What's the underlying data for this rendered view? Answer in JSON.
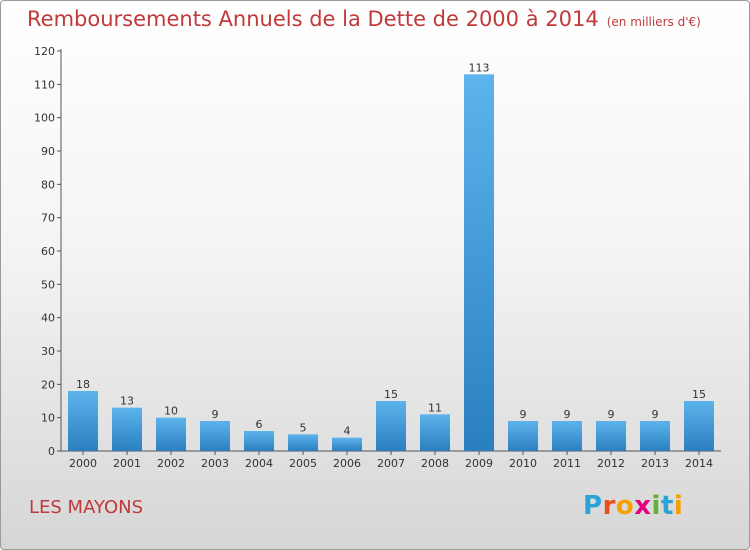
{
  "title": "Remboursements Annuels de la Dette de 2000 à 2014",
  "title_unit": "(en milliers d'€)",
  "place": "LES MAYONS",
  "logo": {
    "letters": [
      "P",
      "r",
      "o",
      "x",
      "i",
      "t",
      "i"
    ],
    "colors": [
      "#2aa3d6",
      "#e94e1b",
      "#f4a100",
      "#e6007e",
      "#5fb336",
      "#2aa3d6",
      "#f4a100"
    ]
  },
  "colors": {
    "title": "#c0393b",
    "bar_light": "#5db4ec",
    "bar_dark": "#2a7fc0"
  },
  "chart_data": {
    "type": "bar",
    "categories": [
      "2000",
      "2001",
      "2002",
      "2003",
      "2004",
      "2005",
      "2006",
      "2007",
      "2008",
      "2009",
      "2010",
      "2011",
      "2012",
      "2013",
      "2014"
    ],
    "values": [
      18,
      13,
      10,
      9,
      6,
      5,
      4,
      15,
      11,
      113,
      9,
      9,
      9,
      9,
      15
    ],
    "ylim": [
      0,
      120
    ],
    "yticks": [
      0,
      10,
      20,
      30,
      40,
      50,
      60,
      70,
      80,
      90,
      100,
      110,
      120
    ],
    "grid": false,
    "data_labels": true
  }
}
